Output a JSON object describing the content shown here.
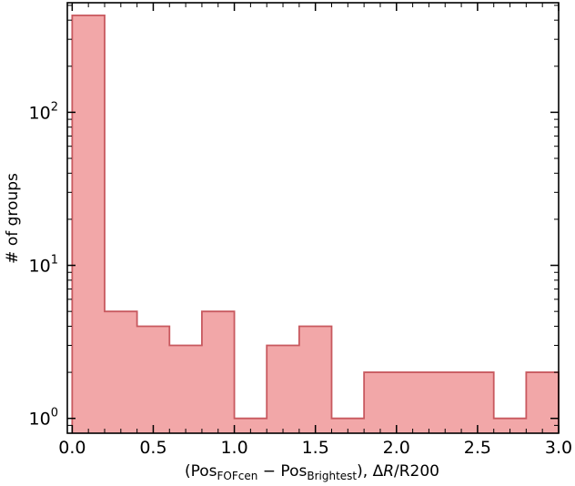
{
  "chart_data": {
    "type": "bar",
    "histogram": true,
    "bin_edges": [
      0.0,
      0.2,
      0.4,
      0.6,
      0.8,
      1.0,
      1.2,
      1.4,
      1.6,
      1.8,
      2.0,
      2.2,
      2.4,
      2.6,
      2.8,
      3.0
    ],
    "values": [
      430,
      5,
      4,
      3,
      5,
      1,
      3,
      4,
      1,
      2,
      2,
      2,
      2,
      1,
      2
    ],
    "xlim": [
      -0.03,
      3.0
    ],
    "ylim": [
      0.8,
      520
    ],
    "yscale": "log",
    "fill_color": "#f2a7a8",
    "edge_color": "#c8595f",
    "xticks": [
      0.0,
      0.5,
      1.0,
      1.5,
      2.0,
      2.5,
      3.0
    ],
    "xtick_labels": [
      "0.0",
      "0.5",
      "1.0",
      "1.5",
      "2.0",
      "2.5",
      "3.0"
    ],
    "yticks_major": [
      1,
      10,
      100
    ],
    "ytick_labels": [
      {
        "base": "10",
        "exp": "0"
      },
      {
        "base": "10",
        "exp": "1"
      },
      {
        "base": "10",
        "exp": "2"
      }
    ],
    "ylabel": "# of groups",
    "xlabel": {
      "open": "(Pos",
      "sub1": "FOFcen",
      "minus": " − Pos",
      "sub2": "Brightest",
      "close": "), Δ",
      "italic": "R",
      "tail": "/R200"
    }
  }
}
